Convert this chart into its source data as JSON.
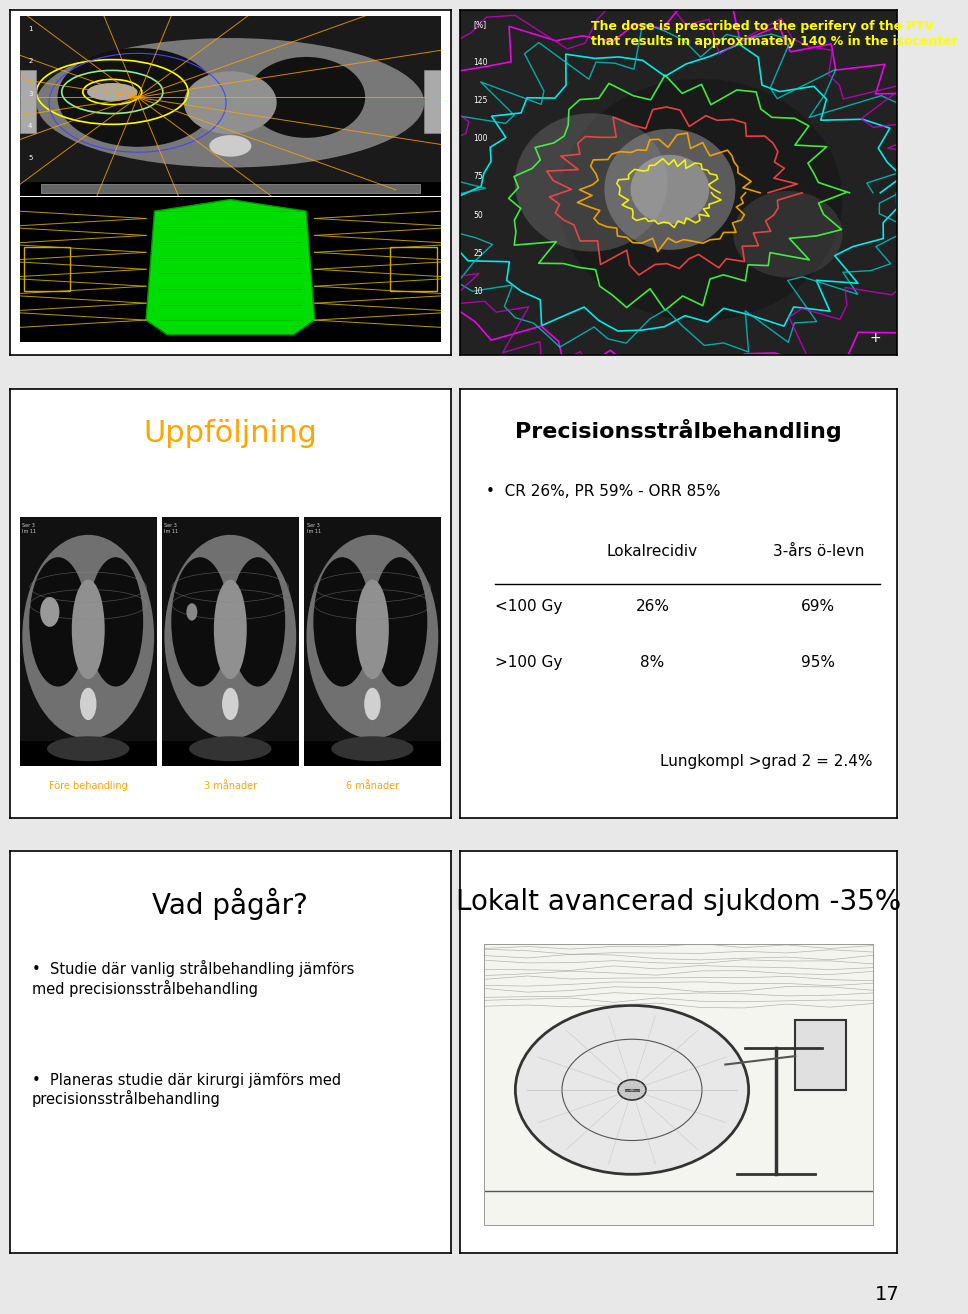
{
  "bg_color": "#e8e8e8",
  "page_number": "17",
  "panel_border_color": "#000000",
  "panel_border_lw": 1.2,
  "panel_top_right_text": "The dose is prescribed to the perifery of the PTV\nthat results in approximately 140 % in the isocenter",
  "panel_top_right_text_color": "#ffff00",
  "panel_top_right_nums": [
    "[%]",
    "140",
    "125",
    "100",
    "75",
    "50",
    "25",
    "10"
  ],
  "panel_mid_left_title": "Uppföljning",
  "panel_mid_left_title_color": "#FFA500",
  "panel_mid_left_labels": [
    "Före behandling",
    "3 månader",
    "6 månader"
  ],
  "panel_mid_right_title": "Precisionsstrålbehandling",
  "panel_mid_right_bullet": "CR 26%, PR 59% - ORR 85%",
  "panel_mid_right_col1": "Lokalrecidiv",
  "panel_mid_right_col2": "3-års ö-levn",
  "panel_mid_right_row1_label": "<100 Gy",
  "panel_mid_right_row1_v1": "26%",
  "panel_mid_right_row1_v2": "69%",
  "panel_mid_right_row2_label": ">100 Gy",
  "panel_mid_right_row2_v1": "8%",
  "panel_mid_right_row2_v2": "95%",
  "panel_mid_right_footer": "Lungkompl >grad 2 = 2.4%",
  "panel_bot_left_title": "Vad pågår?",
  "panel_bot_left_bullet1": "Studie där vanlig strålbehandling jämförs\nmed precisionsstrålbehandling",
  "panel_bot_left_bullet2": "Planeras studie där kirurgi jämförs med\nprecisionsstrålbehandling",
  "panel_bot_right_title": "Lokalt avancerad sjukdom -35%"
}
